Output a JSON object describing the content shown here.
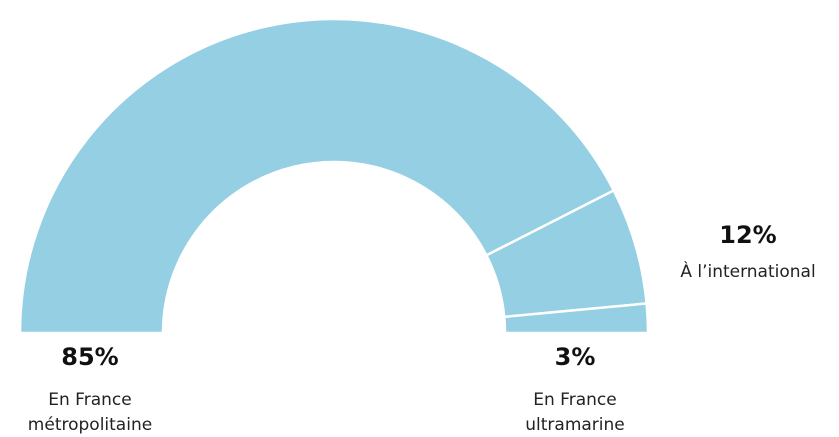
{
  "chart_data": {
    "type": "semi-donut",
    "categories": [
      "En France métropolitaine",
      "À l’international",
      "En France ultramarine"
    ],
    "values": [
      85,
      12,
      3
    ],
    "value_labels": [
      "85%",
      "12%",
      "3%"
    ],
    "color": "#94cfe4"
  }
}
